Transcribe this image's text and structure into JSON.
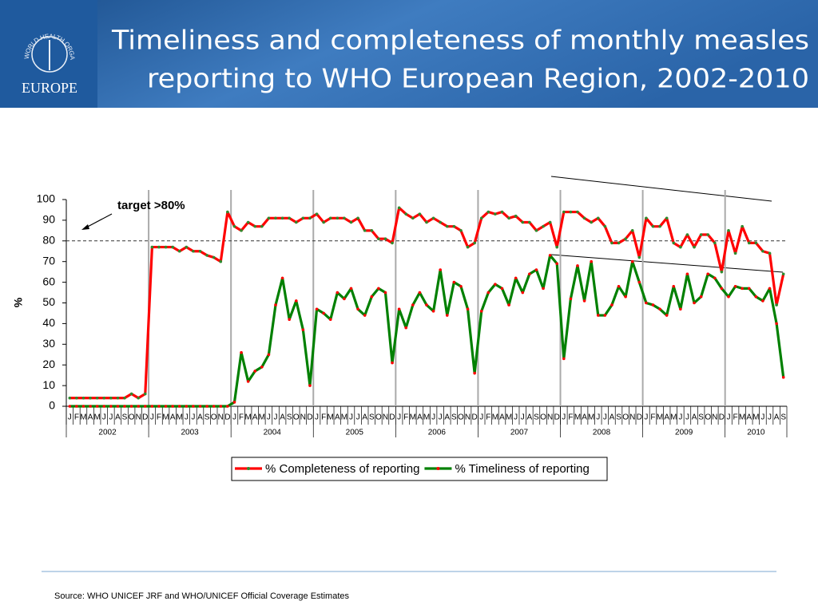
{
  "header": {
    "title": [
      "Timeliness and completeness of monthly measles",
      "reporting to WHO European Region, 2002-2010"
    ],
    "logo_ring_text": "WORLD HEALTH ORGANIZATION",
    "logo_text": "EUROPE"
  },
  "chart_data": {
    "type": "line",
    "ylabel": "%",
    "ylim": [
      0,
      100
    ],
    "yticks": [
      0,
      10,
      20,
      30,
      40,
      50,
      60,
      70,
      80,
      90,
      100
    ],
    "categories": [
      "J",
      "F",
      "M",
      "A",
      "M",
      "J",
      "J",
      "A",
      "S",
      "O",
      "N",
      "D",
      "J",
      "F",
      "M",
      "A",
      "M",
      "J",
      "J",
      "A",
      "S",
      "O",
      "N",
      "D",
      "J",
      "F",
      "M",
      "A",
      "M",
      "J",
      "J",
      "A",
      "S",
      "O",
      "N",
      "D",
      "J",
      "F",
      "M",
      "A",
      "M",
      "J",
      "J",
      "A",
      "S",
      "O",
      "N",
      "D",
      "J",
      "F",
      "M",
      "A",
      "M",
      "J",
      "J",
      "A",
      "S",
      "O",
      "N",
      "D",
      "J",
      "F",
      "M",
      "A",
      "M",
      "J",
      "J",
      "A",
      "S",
      "O",
      "N",
      "D",
      "J",
      "F",
      "M",
      "A",
      "M",
      "J",
      "J",
      "A",
      "S",
      "O",
      "N",
      "D",
      "J",
      "F",
      "M",
      "A",
      "M",
      "J",
      "J",
      "A",
      "S",
      "O",
      "N",
      "D",
      "J",
      "F",
      "M",
      "A",
      "M",
      "J",
      "J",
      "A",
      "S"
    ],
    "years": [
      "2002",
      "2003",
      "2004",
      "2005",
      "2006",
      "2007",
      "2008",
      "2009",
      "2010"
    ],
    "target": 80,
    "target_label": "target >80%",
    "series": [
      {
        "name": "% Completeness of reporting",
        "color": "#ff0000",
        "marker_color": "#2e8b2e",
        "values": [
          4,
          4,
          4,
          4,
          4,
          4,
          4,
          4,
          4,
          6,
          4,
          6,
          77,
          77,
          77,
          77,
          75,
          77,
          75,
          75,
          73,
          72,
          70,
          94,
          87,
          85,
          89,
          87,
          87,
          91,
          91,
          91,
          91,
          89,
          91,
          91,
          93,
          89,
          91,
          91,
          91,
          89,
          91,
          85,
          85,
          81,
          81,
          79,
          96,
          93,
          91,
          93,
          89,
          91,
          89,
          87,
          87,
          85,
          77,
          79,
          91,
          94,
          93,
          94,
          91,
          92,
          89,
          89,
          85,
          87,
          89,
          77,
          94,
          94,
          94,
          91,
          89,
          91,
          87,
          79,
          79,
          81,
          85,
          72,
          91,
          87,
          87,
          91,
          79,
          77,
          83,
          77,
          83,
          83,
          79,
          65,
          85,
          74,
          87,
          79,
          79,
          75,
          74,
          49,
          64
        ]
      },
      {
        "name": "% Timeliness of reporting",
        "color": "#008000",
        "marker_color": "#ff0000",
        "values": [
          0,
          0,
          0,
          0,
          0,
          0,
          0,
          0,
          0,
          0,
          0,
          0,
          0,
          0,
          0,
          0,
          0,
          0,
          0,
          0,
          0,
          0,
          0,
          0,
          2,
          26,
          12,
          17,
          19,
          25,
          49,
          62,
          42,
          51,
          37,
          10,
          47,
          45,
          42,
          55,
          52,
          57,
          47,
          44,
          53,
          57,
          55,
          21,
          47,
          38,
          49,
          55,
          49,
          46,
          66,
          44,
          60,
          58,
          47,
          16,
          46,
          55,
          59,
          57,
          49,
          62,
          55,
          64,
          66,
          57,
          73,
          69,
          23,
          52,
          68,
          51,
          70,
          44,
          44,
          49,
          58,
          53,
          70,
          60,
          50,
          49,
          47,
          44,
          58,
          47,
          64,
          50,
          53,
          64,
          62,
          57,
          53,
          58,
          57,
          57,
          53,
          51,
          57,
          40,
          14
        ]
      }
    ]
  },
  "footer": {
    "source": "Source: WHO UNICEF JRF and WHO/UNICEF Official Coverage Estimates"
  }
}
